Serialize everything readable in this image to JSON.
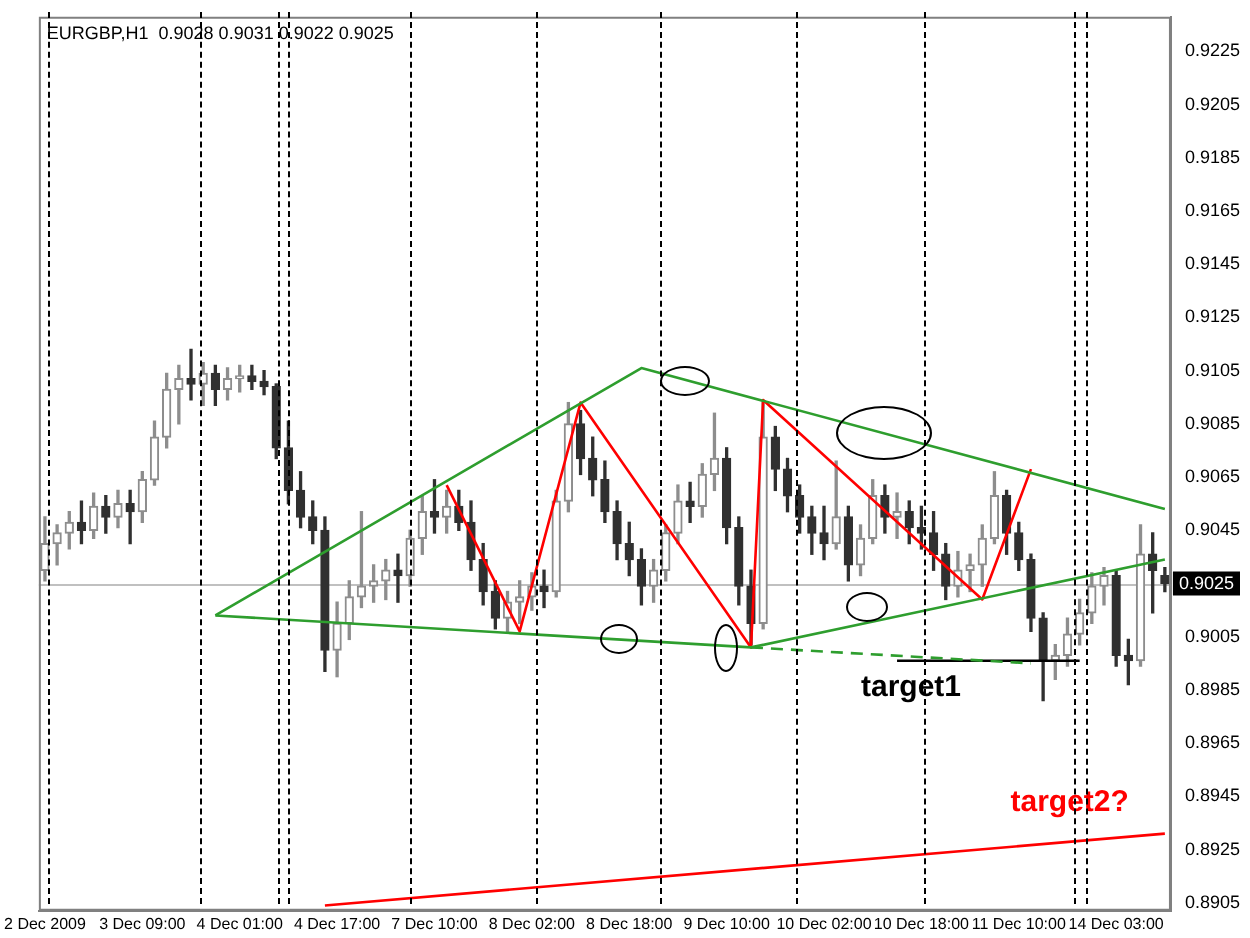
{
  "chart_data": {
    "type": "candlestick",
    "title": "EURGBP,H1  0.9028 0.9031 0.9022 0.9025",
    "colors": [
      "#8d8d8d",
      "#8d8d8d",
      "#8d8d8d",
      "#303030",
      "#8d8d8d",
      "#303030",
      "#8d8d8d",
      "#303030",
      "#8d8d8d",
      "#8d8d8d",
      "#8d8d8d",
      "#8d8d8d",
      "#303030",
      "#8d8d8d",
      "#303030",
      "#8d8d8d",
      "#8d8d8d",
      "#303030",
      "#303030",
      "#303030",
      "#303030",
      "#303030",
      "#303030",
      "#303030",
      "#8d8d8d",
      "#8d8d8d",
      "#8d8d8d",
      "#8d8d8d",
      "#8d8d8d",
      "#303030",
      "#8d8d8d",
      "#8d8d8d",
      "#303030",
      "#8d8d8d",
      "#303030",
      "#303030",
      "#303030",
      "#303030",
      "#8d8d8d",
      "#8d8d8d",
      "#8d8d8d",
      "#303030",
      "#8d8d8d",
      "#8d8d8d",
      "#303030",
      "#303030",
      "#303030",
      "#303030",
      "#303030",
      "#303030",
      "#8d8d8d",
      "#8d8d8d",
      "#8d8d8d",
      "#303030",
      "#8d8d8d",
      "#8d8d8d",
      "#303030",
      "#303030",
      "#303030",
      "#8d8d8d",
      "#303030",
      "#303030",
      "#303030",
      "#303030",
      "#303030",
      "#8d8d8d",
      "#303030",
      "#8d8d8d",
      "#8d8d8d",
      "#303030",
      "#8d8d8d",
      "#303030",
      "#303030",
      "#303030",
      "#303030",
      "#8d8d8d",
      "#8d8d8d",
      "#8d8d8d",
      "#8d8d8d",
      "#303030",
      "#303030",
      "#303030",
      "#303030",
      "#8d8d8d",
      "#8d8d8d",
      "#8d8d8d",
      "#8d8d8d",
      "#8d8d8d",
      "#303030",
      "#303030",
      "#8d8d8d",
      "#303030",
      "#303030"
    ],
    "categories": [
      "2 Dec 2009",
      null,
      null,
      null,
      null,
      null,
      null,
      null,
      "3 Dec 09:00",
      null,
      null,
      null,
      null,
      null,
      null,
      null,
      "4 Dec 01:00",
      null,
      null,
      null,
      null,
      null,
      null,
      null,
      "4 Dec 17:00",
      null,
      null,
      null,
      null,
      null,
      null,
      null,
      "7 Dec 10:00",
      null,
      null,
      null,
      null,
      null,
      null,
      null,
      "8 Dec 02:00",
      null,
      null,
      null,
      null,
      null,
      null,
      null,
      "8 Dec 18:00",
      null,
      null,
      null,
      null,
      null,
      null,
      null,
      "9 Dec 10:00",
      null,
      null,
      null,
      null,
      null,
      null,
      null,
      "10 Dec 02:00",
      null,
      null,
      null,
      null,
      null,
      null,
      null,
      "10 Dec 18:00",
      null,
      null,
      null,
      null,
      null,
      null,
      null,
      "11 Dec 10:00",
      null,
      null,
      null,
      null,
      null,
      null,
      null,
      "14 Dec 03:00",
      null,
      null,
      null,
      null
    ],
    "ohlc": [
      [
        0.903,
        0.905,
        0.9026,
        0.904
      ],
      [
        0.904,
        0.9047,
        0.9032,
        0.9044
      ],
      [
        0.9044,
        0.9052,
        0.9038,
        0.9048
      ],
      [
        0.9048,
        0.9056,
        0.904,
        0.9045
      ],
      [
        0.9045,
        0.9059,
        0.9042,
        0.9054
      ],
      [
        0.9054,
        0.9058,
        0.9044,
        0.905
      ],
      [
        0.905,
        0.906,
        0.9046,
        0.9055
      ],
      [
        0.9055,
        0.906,
        0.904,
        0.9052
      ],
      [
        0.9052,
        0.9067,
        0.9048,
        0.9064
      ],
      [
        0.9064,
        0.9086,
        0.9062,
        0.908
      ],
      [
        0.908,
        0.9104,
        0.9076,
        0.9098
      ],
      [
        0.9098,
        0.9107,
        0.9085,
        0.9102
      ],
      [
        0.9102,
        0.9113,
        0.9094,
        0.91
      ],
      [
        0.91,
        0.9108,
        0.9092,
        0.9104
      ],
      [
        0.9104,
        0.9107,
        0.9092,
        0.9098
      ],
      [
        0.9098,
        0.9106,
        0.9094,
        0.9102
      ],
      [
        0.9102,
        0.9107,
        0.9097,
        0.9103
      ],
      [
        0.9103,
        0.9107,
        0.9098,
        0.9101
      ],
      [
        0.9101,
        0.9105,
        0.9096,
        0.9099
      ],
      [
        0.9099,
        0.91,
        0.9072,
        0.9076
      ],
      [
        0.9076,
        0.9086,
        0.9055,
        0.906
      ],
      [
        0.906,
        0.9067,
        0.9046,
        0.905
      ],
      [
        0.905,
        0.9056,
        0.904,
        0.9045
      ],
      [
        0.9045,
        0.905,
        0.8992,
        0.9
      ],
      [
        0.9,
        0.9018,
        0.899,
        0.901
      ],
      [
        0.901,
        0.9026,
        0.9004,
        0.902
      ],
      [
        0.902,
        0.9052,
        0.9016,
        0.9024
      ],
      [
        0.9024,
        0.9032,
        0.9018,
        0.9026
      ],
      [
        0.9026,
        0.9034,
        0.9019,
        0.903
      ],
      [
        0.903,
        0.9036,
        0.9018,
        0.9028
      ],
      [
        0.9028,
        0.9045,
        0.9024,
        0.9042
      ],
      [
        0.9042,
        0.9058,
        0.9036,
        0.9052
      ],
      [
        0.9052,
        0.9064,
        0.9044,
        0.905
      ],
      [
        0.905,
        0.906,
        0.9044,
        0.9054
      ],
      [
        0.9054,
        0.906,
        0.9045,
        0.9048
      ],
      [
        0.9048,
        0.9056,
        0.903,
        0.9034
      ],
      [
        0.9034,
        0.904,
        0.9017,
        0.9022
      ],
      [
        0.9022,
        0.9026,
        0.9008,
        0.9012
      ],
      [
        0.9012,
        0.9022,
        0.9007,
        0.9018
      ],
      [
        0.9018,
        0.9026,
        0.901,
        0.902
      ],
      [
        0.902,
        0.9029,
        0.9015,
        0.9024
      ],
      [
        0.9024,
        0.903,
        0.9016,
        0.9022
      ],
      [
        0.9022,
        0.906,
        0.902,
        0.9056
      ],
      [
        0.9056,
        0.9093,
        0.9052,
        0.9085
      ],
      [
        0.9085,
        0.909,
        0.9066,
        0.9072
      ],
      [
        0.9072,
        0.908,
        0.9058,
        0.9064
      ],
      [
        0.9064,
        0.9071,
        0.9048,
        0.9052
      ],
      [
        0.9052,
        0.9056,
        0.9034,
        0.904
      ],
      [
        0.904,
        0.9048,
        0.9028,
        0.9034
      ],
      [
        0.9034,
        0.9038,
        0.9017,
        0.9024
      ],
      [
        0.9024,
        0.9034,
        0.9018,
        0.903
      ],
      [
        0.903,
        0.9047,
        0.9026,
        0.9044
      ],
      [
        0.9044,
        0.9062,
        0.904,
        0.9056
      ],
      [
        0.9056,
        0.9063,
        0.9048,
        0.9054
      ],
      [
        0.9054,
        0.907,
        0.905,
        0.9066
      ],
      [
        0.9066,
        0.9089,
        0.906,
        0.9072
      ],
      [
        0.9072,
        0.9076,
        0.904,
        0.9046
      ],
      [
        0.9046,
        0.905,
        0.9017,
        0.9024
      ],
      [
        0.9024,
        0.903,
        0.9002,
        0.901
      ],
      [
        0.901,
        0.9093,
        0.9008,
        0.908
      ],
      [
        0.908,
        0.9084,
        0.906,
        0.9068
      ],
      [
        0.9068,
        0.9072,
        0.9052,
        0.9058
      ],
      [
        0.9058,
        0.9062,
        0.9044,
        0.905
      ],
      [
        0.905,
        0.9054,
        0.9036,
        0.9044
      ],
      [
        0.9044,
        0.9054,
        0.9034,
        0.904
      ],
      [
        0.904,
        0.9071,
        0.9038,
        0.905
      ],
      [
        0.905,
        0.9054,
        0.9026,
        0.9032
      ],
      [
        0.9032,
        0.9047,
        0.9028,
        0.9042
      ],
      [
        0.9042,
        0.9064,
        0.904,
        0.9058
      ],
      [
        0.9058,
        0.9062,
        0.9044,
        0.905
      ],
      [
        0.905,
        0.9059,
        0.9042,
        0.9052
      ],
      [
        0.9052,
        0.9056,
        0.904,
        0.9046
      ],
      [
        0.9046,
        0.9054,
        0.9038,
        0.9044
      ],
      [
        0.9044,
        0.9052,
        0.903,
        0.9036
      ],
      [
        0.9036,
        0.904,
        0.9019,
        0.9024
      ],
      [
        0.9024,
        0.9037,
        0.902,
        0.903
      ],
      [
        0.903,
        0.9036,
        0.9022,
        0.9032
      ],
      [
        0.9032,
        0.9047,
        0.9024,
        0.9042
      ],
      [
        0.9042,
        0.9067,
        0.904,
        0.9058
      ],
      [
        0.9058,
        0.906,
        0.9036,
        0.9044
      ],
      [
        0.9044,
        0.9048,
        0.903,
        0.9034
      ],
      [
        0.9034,
        0.9036,
        0.9007,
        0.9012
      ],
      [
        0.9012,
        0.9014,
        0.8981,
        0.8996
      ],
      [
        0.8996,
        0.9002,
        0.8989,
        0.8998
      ],
      [
        0.8998,
        0.9012,
        0.8994,
        0.9006
      ],
      [
        0.9006,
        0.9019,
        0.9002,
        0.9014
      ],
      [
        0.9014,
        0.9029,
        0.901,
        0.9024
      ],
      [
        0.9024,
        0.9031,
        0.9017,
        0.9028
      ],
      [
        0.9028,
        0.903,
        0.8994,
        0.8998
      ],
      [
        0.8998,
        0.9004,
        0.8987,
        0.8996
      ],
      [
        0.8996,
        0.9047,
        0.8994,
        0.9036
      ],
      [
        0.9036,
        0.9044,
        0.9014,
        0.903
      ],
      [
        0.9028,
        0.9031,
        0.9022,
        0.9025
      ]
    ],
    "series": [
      {
        "type": "line",
        "color": "#2e9e2e",
        "values": [
          null,
          null,
          null,
          null,
          null,
          null,
          null,
          null,
          null,
          null,
          null,
          null,
          null,
          null,
          0.9013,
          null,
          null,
          null,
          null,
          null,
          null,
          null,
          null,
          null,
          null,
          null,
          null,
          null,
          null,
          null,
          null,
          null,
          null,
          null,
          null,
          null,
          null,
          null,
          null,
          null,
          null,
          null,
          null,
          null,
          null,
          null,
          null,
          null,
          null,
          0.9106,
          null,
          null,
          null,
          null,
          null,
          null,
          null,
          null,
          null,
          null,
          null,
          null,
          null,
          null,
          null,
          null,
          null,
          null,
          null,
          null,
          null,
          null,
          null,
          null,
          null,
          null,
          null,
          null,
          null,
          null,
          null,
          null,
          null,
          null,
          null,
          null,
          null,
          null,
          null,
          null,
          null,
          null,
          0.9053
        ]
      },
      {
        "type": "line",
        "color": "#2e9e2e",
        "values": [
          null,
          null,
          null,
          null,
          null,
          null,
          null,
          null,
          null,
          null,
          null,
          null,
          null,
          null,
          0.9013,
          null,
          null,
          null,
          null,
          null,
          null,
          null,
          null,
          null,
          null,
          null,
          null,
          null,
          null,
          null,
          null,
          null,
          null,
          null,
          null,
          null,
          null,
          null,
          null,
          null,
          null,
          null,
          null,
          null,
          null,
          null,
          null,
          null,
          null,
          null,
          null,
          null,
          null,
          null,
          null,
          null,
          null,
          null,
          0.9001,
          null,
          null,
          null,
          null,
          null,
          null,
          null,
          null,
          null,
          null,
          null,
          null,
          null,
          null,
          null,
          null,
          null,
          null,
          null,
          null,
          null,
          null,
          null,
          null,
          null,
          null,
          null,
          null,
          null,
          null,
          null,
          null,
          null,
          0.9034
        ]
      },
      {
        "type": "line",
        "color": "#2e9e2e",
        "line_style": "dashed",
        "values": [
          null,
          null,
          null,
          null,
          null,
          null,
          null,
          null,
          null,
          null,
          null,
          null,
          null,
          null,
          null,
          null,
          null,
          null,
          null,
          null,
          null,
          null,
          null,
          null,
          null,
          null,
          null,
          null,
          null,
          null,
          null,
          null,
          null,
          null,
          null,
          null,
          null,
          null,
          null,
          null,
          null,
          null,
          null,
          null,
          null,
          null,
          null,
          null,
          null,
          null,
          null,
          null,
          null,
          null,
          null,
          null,
          null,
          null,
          0.9001,
          null,
          null,
          null,
          null,
          null,
          null,
          null,
          null,
          null,
          null,
          null,
          null,
          null,
          null,
          null,
          null,
          null,
          null,
          null,
          null,
          null,
          null,
          0.8995,
          null,
          null,
          null,
          null,
          null,
          null,
          null,
          null,
          null,
          null,
          null
        ]
      },
      {
        "type": "line",
        "color": "#ff0000",
        "values": [
          null,
          null,
          null,
          null,
          null,
          null,
          null,
          null,
          null,
          null,
          null,
          null,
          null,
          null,
          null,
          null,
          null,
          null,
          null,
          null,
          null,
          null,
          null,
          null,
          null,
          null,
          null,
          null,
          null,
          null,
          null,
          null,
          null,
          0.9062,
          null,
          null,
          null,
          null,
          null,
          0.9007,
          null,
          null,
          null,
          null,
          0.9093,
          null,
          null,
          null,
          null,
          null,
          null,
          null,
          null,
          null,
          null,
          null,
          null,
          null,
          0.9001,
          0.9094,
          null,
          null,
          null,
          null,
          null,
          null,
          null,
          null,
          null,
          null,
          null,
          null,
          null,
          null,
          null,
          null,
          null,
          0.9019,
          null,
          null,
          null,
          0.9068,
          null,
          null,
          null,
          null,
          null,
          null,
          null,
          null,
          null,
          null,
          null
        ]
      },
      {
        "type": "line",
        "name": "target1",
        "color": "#000000",
        "values": [
          null,
          null,
          null,
          null,
          null,
          null,
          null,
          null,
          null,
          null,
          null,
          null,
          null,
          null,
          null,
          null,
          null,
          null,
          null,
          null,
          null,
          null,
          null,
          null,
          null,
          null,
          null,
          null,
          null,
          null,
          null,
          null,
          null,
          null,
          null,
          null,
          null,
          null,
          null,
          null,
          null,
          null,
          null,
          null,
          null,
          null,
          null,
          null,
          null,
          null,
          null,
          null,
          null,
          null,
          null,
          null,
          null,
          null,
          null,
          null,
          null,
          null,
          null,
          null,
          null,
          null,
          null,
          null,
          null,
          null,
          0.8996,
          null,
          null,
          null,
          null,
          null,
          null,
          null,
          null,
          null,
          null,
          null,
          null,
          null,
          null,
          0.8996,
          null,
          null,
          null,
          null,
          null,
          null,
          null
        ]
      },
      {
        "type": "line",
        "name": "target2?",
        "color": "#ff0000",
        "values": [
          null,
          null,
          null,
          null,
          null,
          null,
          null,
          null,
          null,
          null,
          null,
          null,
          null,
          null,
          null,
          null,
          null,
          null,
          null,
          null,
          null,
          null,
          null,
          0.8904,
          null,
          null,
          null,
          null,
          null,
          null,
          null,
          null,
          null,
          null,
          null,
          null,
          null,
          null,
          null,
          null,
          null,
          null,
          null,
          null,
          null,
          null,
          null,
          null,
          null,
          null,
          null,
          null,
          null,
          null,
          null,
          null,
          null,
          null,
          null,
          null,
          null,
          null,
          null,
          null,
          null,
          null,
          null,
          null,
          null,
          null,
          null,
          null,
          null,
          null,
          null,
          null,
          null,
          null,
          null,
          null,
          null,
          null,
          null,
          null,
          null,
          null,
          null,
          null,
          null,
          null,
          null,
          null,
          0.8931
        ]
      }
    ],
    "ylim": [
      0.8902,
      0.9238
    ],
    "yticks": [
      0.8905,
      0.8925,
      0.8945,
      0.8965,
      0.8985,
      0.9005,
      0.9045,
      0.9065,
      0.9085,
      0.9105,
      0.9125,
      0.9145,
      0.9165,
      0.9185,
      0.9205,
      0.9225
    ],
    "ref_lines": [
      {
        "axis": "y",
        "value": 0.9025,
        "label": "0.9025",
        "color": "#c0c0c0"
      }
    ],
    "grid": false,
    "legend": false
  }
}
